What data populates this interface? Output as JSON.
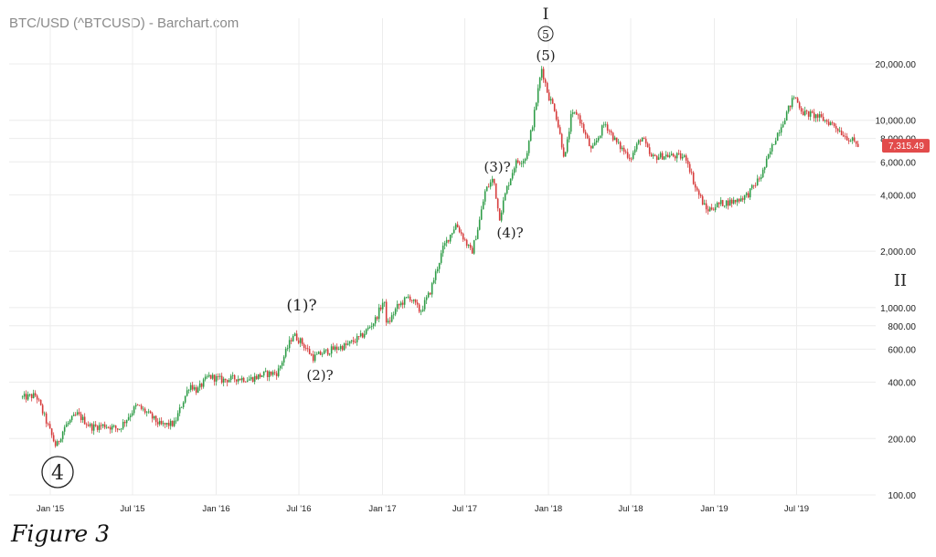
{
  "chart_data": {
    "type": "line",
    "title": "BTC/USD (^BTCUSD) - Barchart.com",
    "y_scale": "log",
    "ylim": [
      100,
      25000
    ],
    "grid": true,
    "y_ticks": [
      "100.00",
      "200.00",
      "400.00",
      "600.00",
      "800.00",
      "1,000.00",
      "2,000.00",
      "4,000.00",
      "6,000.00",
      "8,000.00",
      "10,000.00",
      "20,000.00"
    ],
    "x_ticks": [
      "Jan '15",
      "Jul '15",
      "Jan '16",
      "Jul '16",
      "Jan '17",
      "Jul '17",
      "Jan '18",
      "Jul '18",
      "Jan '19",
      "Jul '19"
    ],
    "last_price_label": "7,315.49",
    "colors": {
      "up": "#2e9c47",
      "down": "#d63b3b",
      "price_tag": "#e24b4b",
      "grid": "#ececec"
    },
    "series": [
      {
        "x": [
          "2014-11-01",
          "2014-12-01",
          "2015-01-14",
          "2015-02-01",
          "2015-03-01",
          "2015-04-01",
          "2015-05-01",
          "2015-06-01",
          "2015-07-10",
          "2015-08-01",
          "2015-09-01",
          "2015-10-01",
          "2015-11-04",
          "2015-11-20",
          "2015-12-15",
          "2016-01-15",
          "2016-02-15",
          "2016-03-15",
          "2016-04-15",
          "2016-05-15",
          "2016-06-18",
          "2016-07-05",
          "2016-08-02",
          "2016-08-20",
          "2016-09-15",
          "2016-10-15",
          "2016-11-15",
          "2016-12-15",
          "2017-01-04",
          "2017-01-11",
          "2017-02-01",
          "2017-03-01",
          "2017-03-25",
          "2017-04-15",
          "2017-05-15",
          "2017-06-12",
          "2017-07-16",
          "2017-08-01",
          "2017-08-15",
          "2017-09-02",
          "2017-09-15",
          "2017-10-01",
          "2017-10-20",
          "2017-11-12",
          "2017-11-28",
          "2017-12-17",
          "2018-01-01",
          "2018-01-15",
          "2018-02-06",
          "2018-02-20",
          "2018-03-05",
          "2018-04-06",
          "2018-05-05",
          "2018-06-01",
          "2018-07-01",
          "2018-07-25",
          "2018-08-15",
          "2018-09-15",
          "2018-10-15",
          "2018-11-01",
          "2018-11-20",
          "2018-12-15",
          "2019-01-15",
          "2019-02-15",
          "2019-03-15",
          "2019-04-15",
          "2019-05-15",
          "2019-06-26",
          "2019-07-15",
          "2019-08-15",
          "2019-09-01",
          "2019-09-20",
          "2019-10-15",
          "2019-11-15"
        ],
        "values": [
          330,
          340,
          180,
          230,
          270,
          230,
          235,
          225,
          300,
          275,
          235,
          240,
          390,
          360,
          430,
          410,
          420,
          415,
          440,
          450,
          720,
          660,
          540,
          570,
          600,
          630,
          700,
          850,
          1100,
          800,
          1000,
          1150,
          950,
          1200,
          2100,
          2800,
          1950,
          2800,
          4200,
          4900,
          3000,
          4300,
          5900,
          6300,
          9800,
          19000,
          13500,
          11500,
          6200,
          10500,
          11000,
          6800,
          9700,
          7500,
          6300,
          8200,
          6300,
          6500,
          6400,
          6300,
          4400,
          3300,
          3600,
          3700,
          4000,
          5100,
          8000,
          13500,
          11000,
          10500,
          10000,
          9500,
          8300,
          7315
        ]
      }
    ],
    "annotations": {
      "roman_one": "I",
      "five_circled": "5",
      "five_paren": "(5)",
      "wave1": "(1)?",
      "wave2": "(2)?",
      "wave3": "(3)?",
      "wave4": "(4)?",
      "four_circled": "4",
      "roman_two": "II",
      "figure_caption": "Figure 3"
    }
  }
}
